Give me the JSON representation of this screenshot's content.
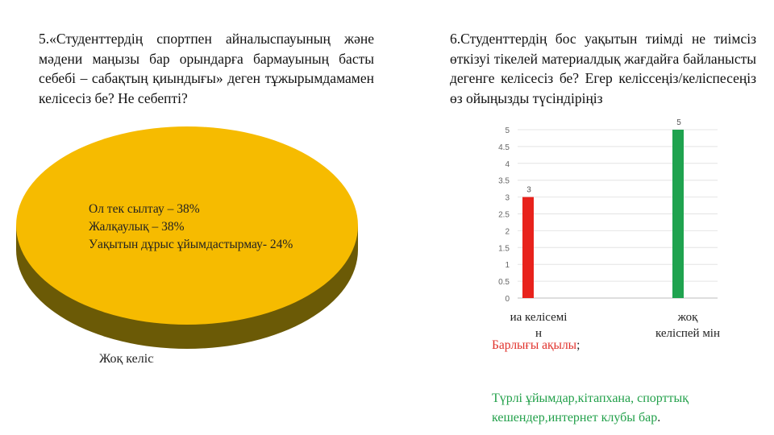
{
  "q5": {
    "text": "5.«Студенттердің спортпен айналыспауының және мәдени маңызы бар орындарға бармауының басты себебі – сабақтың қиындығы» деген тұжырымдамамен келісесіз бе? Не себепті?"
  },
  "q6": {
    "text": "6.Студенттердің бос уақытын тиімді не тиімсіз өткізуі тікелей материалдық жағдайға байланысты дегенге келісесіз бе? Егер келіссеңіз/келіспесеңіз өз ойыңызды түсіндіріңіз"
  },
  "pie": {
    "lines": [
      "Ол тек сылтау – 38%",
      "Жалқаулық – 38%",
      "Уақытын дұрыс ұйымдастырмау- 24%"
    ],
    "bottom_label": "Жоқ келіспеймін",
    "top_color": "#f6bb00",
    "side_color": "#6b5a06"
  },
  "bar_notes": {
    "red_text": "Барлығы ақылы",
    "red_tail": ";",
    "green_text": "Түрлі ұйымдар,кітапхана, спорттық кешендер,интернет клубы бар",
    "green_tail": "."
  },
  "chart_data": {
    "type": "bar",
    "categories": [
      "иа келісемі н",
      "жоқ келіспей мін"
    ],
    "values": [
      3,
      5
    ],
    "data_labels": [
      "3",
      "5"
    ],
    "colors": [
      "#e8221c",
      "#1fa34f"
    ],
    "ylim": [
      0,
      5
    ],
    "yticks": [
      "0",
      "0.5",
      "1",
      "1.5",
      "2",
      "2.5",
      "3",
      "3.5",
      "4",
      "4.5",
      "5"
    ],
    "grid": true
  }
}
